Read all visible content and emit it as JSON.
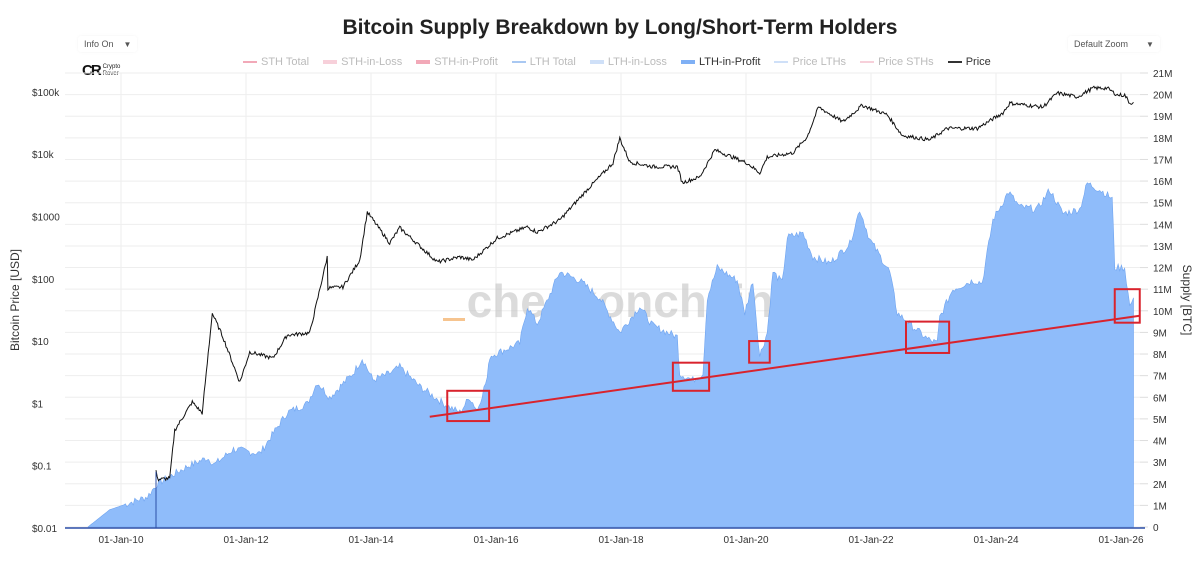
{
  "title": "Bitcoin Supply Breakdown by Long/Short-Term Holders",
  "controls": {
    "info_label": "Info On",
    "zoom_label": "Default Zoom",
    "arrow": "▼"
  },
  "logo": {
    "mark": "CR",
    "line1": "Crypto",
    "line2": "Rover"
  },
  "watermark": "checkonchain",
  "colors": {
    "lth_fill": "#8fbcfa",
    "lth_edge": "#6fa4f0",
    "price": "#111111",
    "trend": "#d9232d",
    "box": "#d9232d",
    "grid": "#eeeeee",
    "axis": "#2b4fa8"
  },
  "legend": [
    {
      "label": "STH Total",
      "color": "#f2a9b8",
      "active": false,
      "thick": false
    },
    {
      "label": "STH-in-Loss",
      "color": "#f7d0da",
      "active": false,
      "thick": true
    },
    {
      "label": "STH-in-Profit",
      "color": "#f2a9b8",
      "active": false,
      "thick": true
    },
    {
      "label": "LTH Total",
      "color": "#a9c8f2",
      "active": false,
      "thick": false
    },
    {
      "label": "LTH-in-Loss",
      "color": "#cfe0f8",
      "active": false,
      "thick": true
    },
    {
      "label": "LTH-in-Profit",
      "color": "#7fb0f5",
      "active": true,
      "thick": true
    },
    {
      "label": "Price LTHs",
      "color": "#cfe0f8",
      "active": false,
      "thick": false
    },
    {
      "label": "Price STHs",
      "color": "#f7d0da",
      "active": false,
      "thick": false
    },
    {
      "label": "Price",
      "color": "#333333",
      "active": true,
      "thick": false
    }
  ],
  "chart_data": {
    "type": "area",
    "title": "Bitcoin Supply Breakdown by Long/Short-Term Holders",
    "xlabel": "",
    "ylabel_left": "Bitcoin Price [USD]",
    "ylabel_right": "Supply [BTC]",
    "x_ticks": [
      "01-Jan-10",
      "01-Jan-12",
      "01-Jan-14",
      "01-Jan-16",
      "01-Jan-18",
      "01-Jan-20",
      "01-Jan-22",
      "01-Jan-24",
      "01-Jan-26"
    ],
    "x_tick_years": [
      2010,
      2012,
      2014,
      2016,
      2018,
      2020,
      2022,
      2024,
      2026
    ],
    "xlim": [
      2009.1,
      2026.3
    ],
    "y_left": {
      "scale": "log",
      "range": [
        0.01,
        200000
      ],
      "ticks": [
        "$0.01",
        "$0.1",
        "$1",
        "$10",
        "$100",
        "$1000",
        "$10k",
        "$100k"
      ],
      "tick_values": [
        0.01,
        0.1,
        1,
        10,
        100,
        1000,
        10000,
        100000
      ]
    },
    "y_right": {
      "scale": "linear",
      "range": [
        0,
        21
      ],
      "unit": "M",
      "ticks": [
        "0",
        "1M",
        "2M",
        "3M",
        "4M",
        "5M",
        "6M",
        "7M",
        "8M",
        "9M",
        "10M",
        "11M",
        "12M",
        "13M",
        "14M",
        "15M",
        "16M",
        "17M",
        "18M",
        "19M",
        "20M",
        "21M"
      ]
    },
    "series": [
      {
        "name": "LTH-in-Profit",
        "axis": "right",
        "unit": "M BTC",
        "x": [
          2009.47,
          2009.82,
          2010.42,
          2010.58,
          2011.06,
          2011.38,
          2011.5,
          2011.8,
          2012.22,
          2012.66,
          2012.98,
          2013.14,
          2013.34,
          2013.71,
          2013.86,
          2014.03,
          2014.3,
          2014.46,
          2014.78,
          2015.22,
          2015.42,
          2015.58,
          2015.7,
          2015.86,
          2015.9,
          2016.38,
          2016.5,
          2016.66,
          2017.02,
          2017.34,
          2017.66,
          2017.98,
          2018.3,
          2018.51,
          2018.9,
          2018.94,
          2019.15,
          2019.31,
          2019.38,
          2019.54,
          2019.86,
          2019.98,
          2020.11,
          2020.22,
          2020.34,
          2020.43,
          2020.58,
          2020.66,
          2020.91,
          2021.07,
          2021.34,
          2021.66,
          2021.82,
          2021.98,
          2022.3,
          2022.42,
          2022.62,
          2022.9,
          2023.06,
          2023.1,
          2023.31,
          2023.63,
          2023.78,
          2023.86,
          2023.95,
          2024.2,
          2024.38,
          2024.66,
          2024.86,
          2025.07,
          2025.34,
          2025.46,
          2025.66,
          2025.86,
          2025.9,
          2026.06,
          2026.14,
          2026.2
        ],
        "y": [
          0,
          0.8,
          1.4,
          2.0,
          2.8,
          3.2,
          2.9,
          3.6,
          3.4,
          5.3,
          5.7,
          6.7,
          6.0,
          7.1,
          7.8,
          6.8,
          7.1,
          7.4,
          6.5,
          5.6,
          5.3,
          6.0,
          5.4,
          6.9,
          7.9,
          8.5,
          10.2,
          9.4,
          11.8,
          11.4,
          10.6,
          9.0,
          10.2,
          9.3,
          8.8,
          7.1,
          6.8,
          7.1,
          10.6,
          12.0,
          11.4,
          9.9,
          11.4,
          7.9,
          9.0,
          11.8,
          11.3,
          13.4,
          13.6,
          12.5,
          12.2,
          13.1,
          14.7,
          13.3,
          11.8,
          9.9,
          9.4,
          8.7,
          8.5,
          9.7,
          11.0,
          11.4,
          11.3,
          12.7,
          14.2,
          15.5,
          14.8,
          14.7,
          15.6,
          14.5,
          14.7,
          15.9,
          15.6,
          15.2,
          12.0,
          12.0,
          10.2,
          10.6
        ]
      },
      {
        "name": "Price",
        "axis": "left",
        "unit": "USD",
        "x": [
          2010.56,
          2010.6,
          2010.78,
          2010.86,
          2011.14,
          2011.3,
          2011.46,
          2011.63,
          2011.9,
          2012.06,
          2012.43,
          2012.66,
          2013.02,
          2013.3,
          2013.31,
          2013.55,
          2013.82,
          2013.94,
          2014.3,
          2014.46,
          2015.06,
          2015.42,
          2015.63,
          2016.02,
          2016.5,
          2016.66,
          2017.02,
          2017.46,
          2017.87,
          2017.98,
          2018.14,
          2018.51,
          2018.9,
          2018.98,
          2019.26,
          2019.5,
          2020.02,
          2020.22,
          2020.34,
          2020.75,
          2020.98,
          2021.16,
          2021.55,
          2021.86,
          2022.26,
          2022.5,
          2022.94,
          2023.22,
          2023.7,
          2024.11,
          2024.22,
          2024.75,
          2024.98,
          2025.3,
          2025.55,
          2025.78,
          2025.94,
          2026.06,
          2026.14,
          2026.2
        ],
        "y": [
          0.08,
          0.06,
          0.063,
          0.37,
          1.05,
          0.7,
          28,
          11.7,
          2.2,
          6.7,
          5.3,
          12.5,
          13.5,
          224,
          71,
          74,
          200,
          1180,
          375,
          660,
          186,
          224,
          200,
          450,
          680,
          560,
          880,
          2700,
          7200,
          18000,
          7500,
          6300,
          6300,
          3500,
          4300,
          11700,
          7200,
          5000,
          9000,
          10500,
          19000,
          57000,
          33000,
          61000,
          43000,
          20000,
          17000,
          26000,
          26000,
          46000,
          66000,
          57000,
          96000,
          83000,
          115000,
          115000,
          89000,
          89000,
          66000,
          68000
        ]
      }
    ],
    "trend_line": {
      "from": [
        2014.94,
        5.1
      ],
      "to": [
        2026.3,
        9.77
      ],
      "axis": "right"
    },
    "highlight_boxes": [
      {
        "x": [
          2015.22,
          2015.89
        ],
        "y": [
          4.9,
          6.3
        ]
      },
      {
        "x": [
          2018.83,
          2019.41
        ],
        "y": [
          6.3,
          7.6
        ]
      },
      {
        "x": [
          2020.05,
          2020.38
        ],
        "y": [
          7.6,
          8.6
        ]
      },
      {
        "x": [
          2022.56,
          2023.25
        ],
        "y": [
          8.05,
          9.5
        ]
      },
      {
        "x": [
          2025.9,
          2026.3
        ],
        "y": [
          9.45,
          11.0
        ]
      }
    ],
    "grid": true,
    "legend_position": "top-center"
  }
}
